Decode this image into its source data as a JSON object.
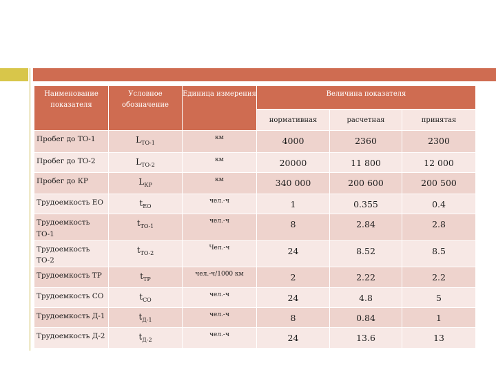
{
  "header": {
    "name": "Наименование показателя",
    "symbol": "Условное обозначение",
    "unit": "Единица измерения",
    "value": "Величина показателя",
    "normative": "нормативная",
    "calculated": "расчетная",
    "accepted": "принятая"
  },
  "rows": [
    {
      "name": "Пробег до ТО-1",
      "sym": "L",
      "sub": "ТО-1",
      "unit": "км",
      "normative": "4000",
      "calculated": "2360",
      "accepted": "2300"
    },
    {
      "name": "Пробег до ТО-2",
      "sym": "L",
      "sub": "ТО-2",
      "unit": "км",
      "normative": "20000",
      "calculated": "11 800",
      "accepted": "12 000"
    },
    {
      "name": "Пробег до КР",
      "sym": "L",
      "sub": "КР",
      "unit": "км",
      "normative": "340 000",
      "calculated": "200 600",
      "accepted": "200 500"
    },
    {
      "name": "Трудоемкость ЕО",
      "sym": "t",
      "sub": "ЕО",
      "unit": "чел.-ч",
      "normative": "1",
      "calculated": "0.355",
      "accepted": "0.4"
    },
    {
      "name": "Трудоемкость ТО-1",
      "sym": "t",
      "sub": "ТО-1",
      "unit": "чел.-ч",
      "normative": "8",
      "calculated": "2.84",
      "accepted": "2.8"
    },
    {
      "name": "Трудоемкость ТО-2",
      "sym": "t",
      "sub": "ТО-2",
      "unit": "Чел.-ч",
      "normative": "24",
      "calculated": "8.52",
      "accepted": "8.5"
    },
    {
      "name": "Трудоемкость ТР",
      "sym": "t",
      "sub": "ТР",
      "unit": "чел.-ч/1000 км",
      "normative": "2",
      "calculated": "2.22",
      "accepted": "2.2"
    },
    {
      "name": "Трудоемкость СО",
      "sym": "t",
      "sub": "СО",
      "unit": "чел.-ч",
      "normative": "24",
      "calculated": "4.8",
      "accepted": "5"
    },
    {
      "name": "Трудоемкость Д-1",
      "sym": "t",
      "sub": "Д-1",
      "unit": "чел.-ч",
      "normative": "8",
      "calculated": "0.84",
      "accepted": "1"
    },
    {
      "name": "Трудоемкость Д-2",
      "sym": "t",
      "sub": "Д-2",
      "unit": "чел.-ч",
      "normative": "24",
      "calculated": "13.6",
      "accepted": "13"
    }
  ]
}
